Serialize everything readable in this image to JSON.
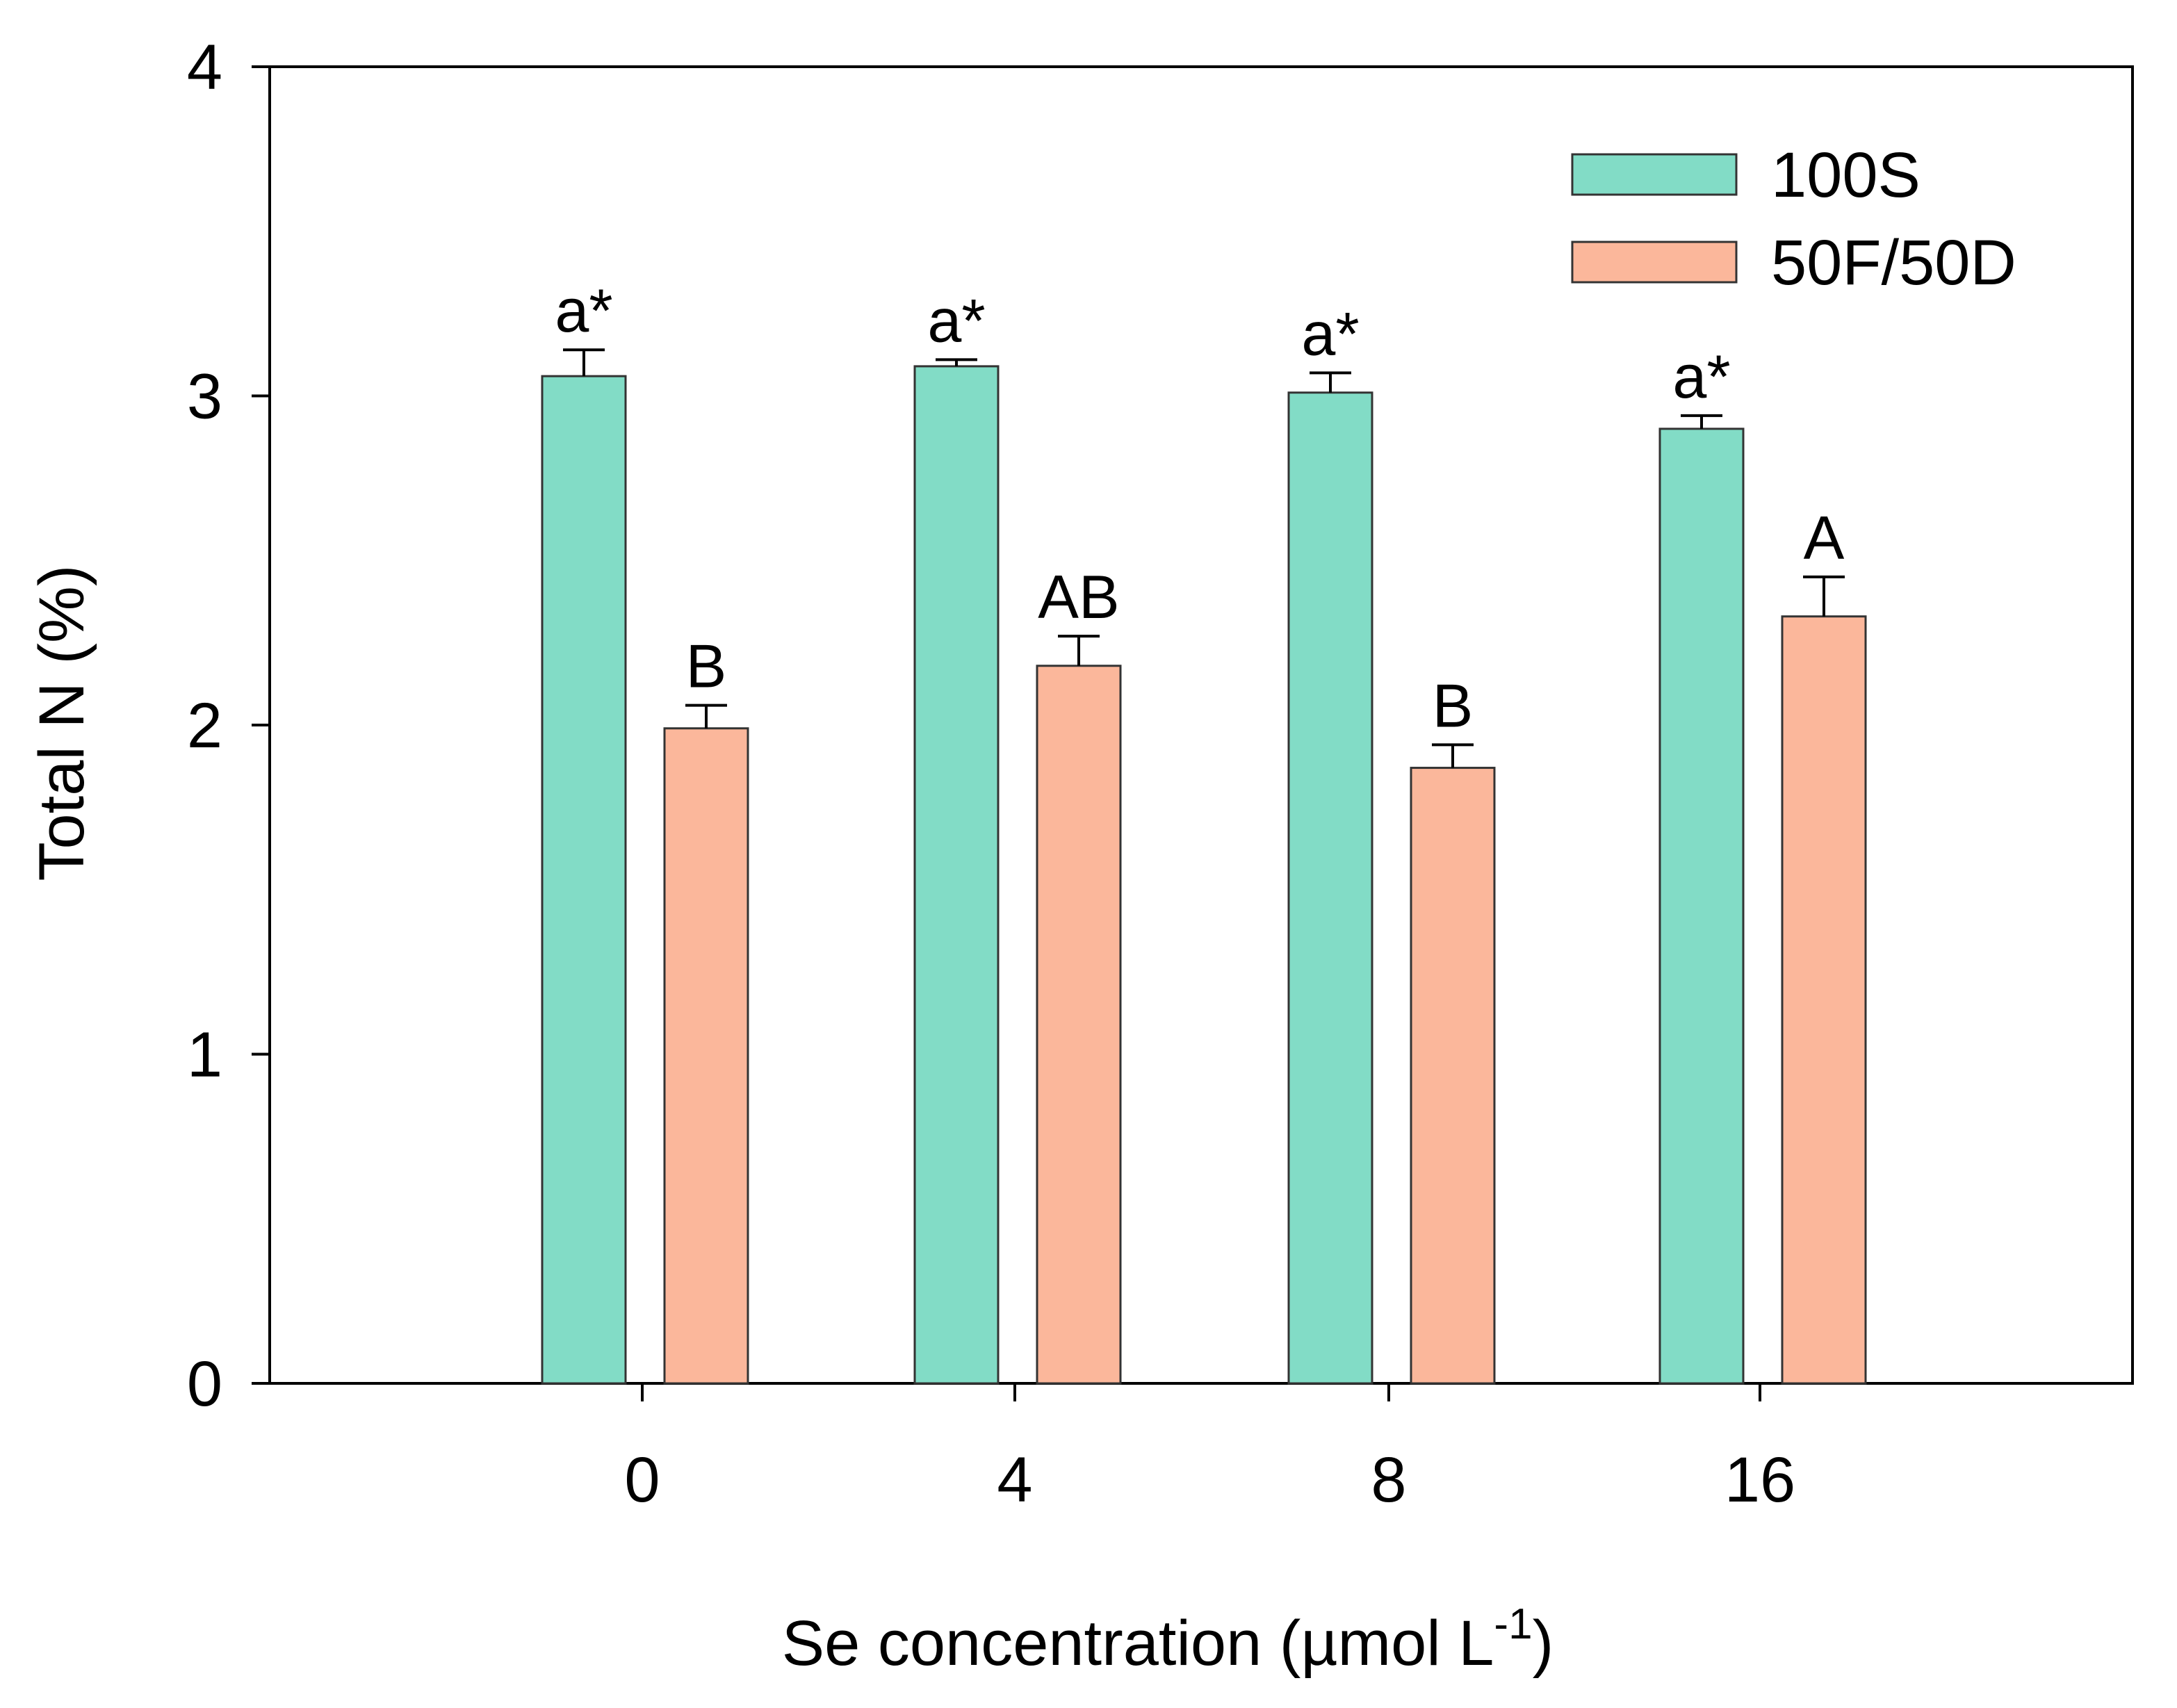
{
  "chart_data": {
    "type": "bar",
    "title": "",
    "xlabel": {
      "text": "Se concentration (µmol L",
      "superscript": "-1",
      "suffix": ")"
    },
    "ylabel": "Total N (%)",
    "ylim": [
      0,
      4
    ],
    "yticks": [
      "0",
      "1",
      "2",
      "3",
      "4"
    ],
    "categories": [
      "0",
      "4",
      "8",
      "16"
    ],
    "legend_position": "top-right",
    "series": [
      {
        "name": "100S",
        "color": "#82dcc6",
        "values": [
          3.06,
          3.09,
          3.01,
          2.9
        ],
        "errors": [
          0.08,
          0.02,
          0.06,
          0.04
        ],
        "labels": [
          "a*",
          "a*",
          "a*",
          "a*"
        ]
      },
      {
        "name": "50F/50D",
        "color": "#fbb79b",
        "values": [
          1.99,
          2.18,
          1.87,
          2.33
        ],
        "errors": [
          0.07,
          0.09,
          0.07,
          0.12
        ],
        "labels": [
          "B",
          "AB",
          "B",
          "A"
        ]
      }
    ]
  }
}
